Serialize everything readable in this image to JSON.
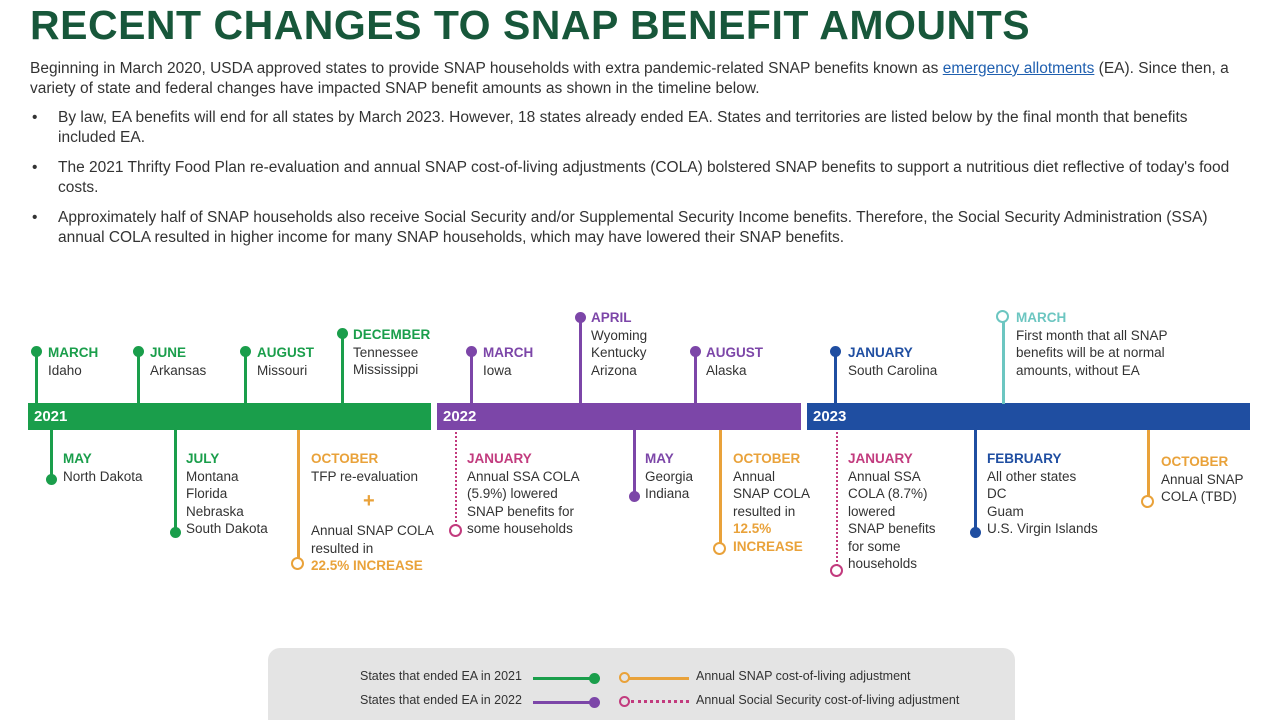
{
  "header": {
    "title": "RECENT CHANGES TO SNAP BENEFIT AMOUNTS",
    "intro_before": "Beginning in March 2020, USDA approved states to provide SNAP households with extra pandemic-related SNAP benefits known as ",
    "intro_link": "emergency allotments",
    "intro_after": " (EA). Since then, a variety of state and federal changes have impacted SNAP benefit amounts as shown in the timeline below."
  },
  "bullets": [
    "By law, EA benefits will end for all states by March 2023. However, 18 states already ended EA. States and territories are listed below by the final month that benefits included EA.",
    "The 2021 Thrifty Food Plan re-evaluation and annual SNAP cost-of-living adjustments (COLA) bolstered SNAP benefits to support a nutritious diet reflective of today's food costs.",
    "Approximately half of SNAP households also receive Social Security and/or Supplemental Security Income benefits. Therefore, the Social Security Administration (SSA) annual COLA resulted in higher income for many SNAP households, which may have lowered their SNAP benefits."
  ],
  "bullet_char": "•",
  "years": {
    "y2021": "2021",
    "y2022": "2022",
    "y2023": "2023"
  },
  "colors": {
    "green": "#1a9e4b",
    "purple": "#7c46a8",
    "blue": "#1f4ea1",
    "orange": "#e9a23a",
    "teal": "#6cc6c1",
    "pink": "#c23b7e",
    "title": "#17573a"
  },
  "events": {
    "mar2021": {
      "month": "MARCH",
      "text": "Idaho"
    },
    "jun2021": {
      "month": "JUNE",
      "text": "Arkansas"
    },
    "aug2021": {
      "month": "AUGUST",
      "text": "Missouri"
    },
    "dec2021": {
      "month": "DECEMBER",
      "l1": "Tennessee",
      "l2": "Mississippi"
    },
    "may2021": {
      "month": "MAY",
      "text": "North Dakota"
    },
    "jul2021": {
      "month": "JULY",
      "l1": "Montana",
      "l2": "Florida",
      "l3": "Nebraska",
      "l4": "South Dakota"
    },
    "oct2021": {
      "month": "OCTOBER",
      "l1": "TFP re-evaluation",
      "plus": "+",
      "l2": "Annual SNAP COLA",
      "l3": "resulted in",
      "l4": "22.5% INCREASE"
    },
    "mar2022": {
      "month": "MARCH",
      "text": "Iowa"
    },
    "apr2022": {
      "month": "APRIL",
      "l1": "Wyoming",
      "l2": "Kentucky",
      "l3": "Arizona"
    },
    "aug2022": {
      "month": "AUGUST",
      "text": "Alaska"
    },
    "jan2022": {
      "month": "JANUARY",
      "l1": "Annual SSA COLA",
      "l2": "(5.9%) lowered",
      "l3": "SNAP benefits for",
      "l4": "some households"
    },
    "may2022": {
      "month": "MAY",
      "l1": "Georgia",
      "l2": "Indiana"
    },
    "oct2022": {
      "month": "OCTOBER",
      "l1": "Annual",
      "l2": "SNAP COLA",
      "l3": "resulted in",
      "l4": "12.5%",
      "l5": "INCREASE"
    },
    "jan2023top": {
      "month": "JANUARY",
      "text": "South Carolina"
    },
    "mar2023": {
      "month": "MARCH",
      "l1": "First month that all SNAP",
      "l2": "benefits will be at normal",
      "l3": "amounts, without EA"
    },
    "jan2023bot": {
      "month": "JANUARY",
      "l1": "Annual SSA",
      "l2": "COLA (8.7%)",
      "l3": "lowered",
      "l4": "SNAP benefits",
      "l5": "for some",
      "l6": "households"
    },
    "feb2023": {
      "month": "FEBRUARY",
      "l1": "All other states",
      "l2": "DC",
      "l3": "Guam",
      "l4": "U.S. Virgin Islands"
    },
    "oct2023": {
      "month": "OCTOBER",
      "l1": "Annual SNAP",
      "l2": "COLA (TBD)"
    }
  },
  "legend": {
    "ended2021": "States that ended EA in 2021",
    "ended2022": "States that ended EA in 2022",
    "snap_cola": "Annual SNAP cost-of-living adjustment",
    "ssa_cola": "Annual Social Security cost-of-living adjustment"
  }
}
